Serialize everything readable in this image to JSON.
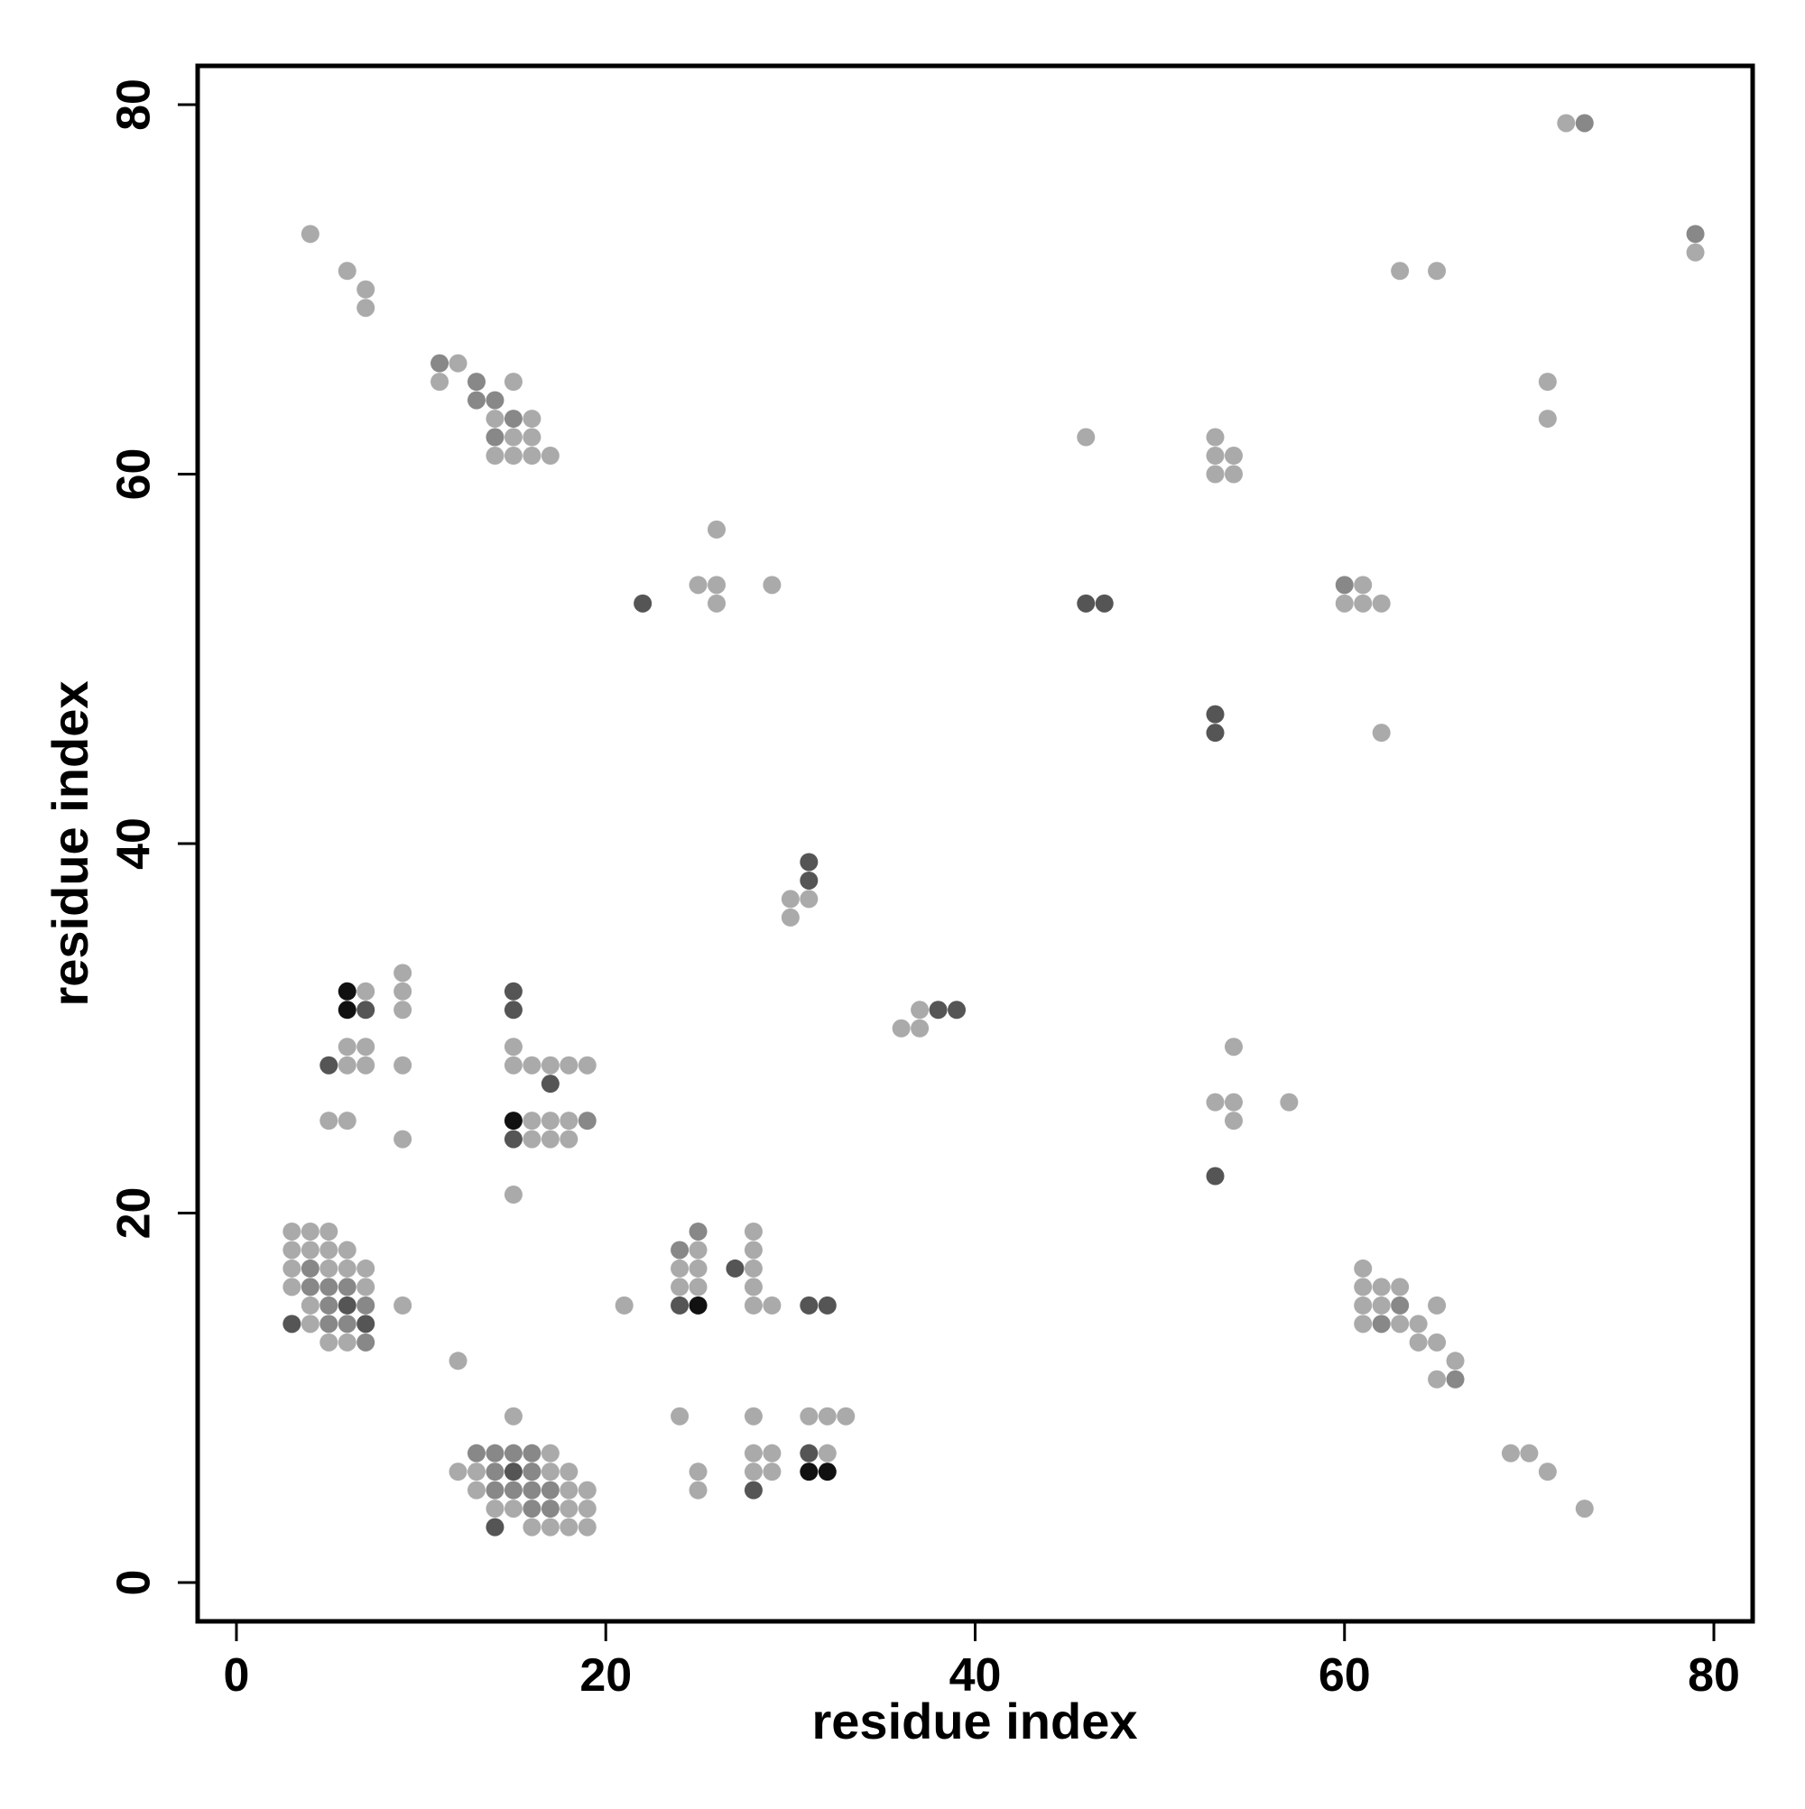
{
  "chart_data": {
    "type": "scatter",
    "xlabel": "residue index",
    "ylabel": "residue index",
    "xlim": [
      -2.1,
      82.1
    ],
    "ylim": [
      -2.1,
      82.1
    ],
    "xticks": [
      0,
      20,
      40,
      60,
      80
    ],
    "yticks": [
      0,
      20,
      40,
      60,
      80
    ],
    "series": [
      {
        "color": "#aaaaaa",
        "x": [
          4,
          6,
          7,
          7,
          12,
          11,
          15,
          14,
          16,
          15,
          16,
          14,
          15,
          16,
          17,
          25,
          26,
          26,
          26,
          29,
          46,
          53,
          53,
          54,
          53,
          54,
          61,
          60,
          61,
          62,
          62,
          63,
          65,
          71,
          71,
          72,
          79,
          30,
          31,
          30,
          36,
          37,
          37,
          54,
          53,
          54,
          54,
          57,
          7,
          9,
          9,
          9,
          6,
          7,
          6,
          7,
          9,
          5,
          6,
          9,
          15,
          15,
          16,
          17,
          18,
          19,
          16,
          17,
          18,
          16,
          17,
          18,
          15,
          3,
          4,
          5,
          3,
          4,
          5,
          6,
          3,
          5,
          6,
          7,
          3,
          7,
          4,
          9,
          4,
          5,
          6,
          12,
          28,
          25,
          28,
          24,
          25,
          28,
          24,
          25,
          28,
          28,
          29,
          21,
          61,
          61,
          62,
          63,
          61,
          62,
          65,
          61,
          63,
          64,
          64,
          65,
          66,
          65,
          69,
          70,
          71,
          73,
          15,
          17,
          12,
          13,
          16,
          17,
          18,
          13,
          18,
          19,
          14,
          15,
          18,
          19,
          16,
          17,
          18,
          19,
          24,
          28,
          31,
          32,
          33,
          28,
          29,
          32,
          25,
          28,
          29,
          25
        ],
        "values": [
          73,
          71,
          70,
          69,
          66,
          65,
          65,
          63,
          63,
          62,
          62,
          61,
          61,
          61,
          61,
          54,
          54,
          53,
          57,
          54,
          62,
          62,
          61,
          61,
          60,
          60,
          54,
          53,
          53,
          53,
          46,
          71,
          71,
          65,
          63,
          79,
          72,
          37,
          37,
          36,
          30,
          31,
          30,
          29,
          26,
          26,
          25,
          26,
          32,
          33,
          32,
          31,
          29,
          29,
          28,
          28,
          28,
          25,
          25,
          24,
          29,
          28,
          28,
          28,
          28,
          28,
          25,
          25,
          25,
          24,
          24,
          24,
          21,
          19,
          19,
          19,
          18,
          18,
          18,
          18,
          17,
          17,
          17,
          17,
          16,
          16,
          15,
          15,
          14,
          13,
          13,
          12,
          19,
          18,
          18,
          17,
          17,
          17,
          16,
          16,
          16,
          15,
          15,
          15,
          17,
          16,
          16,
          16,
          15,
          15,
          15,
          14,
          14,
          14,
          13,
          13,
          12,
          11,
          7,
          7,
          6,
          4,
          9,
          7,
          6,
          6,
          6,
          6,
          6,
          5,
          5,
          5,
          4,
          4,
          4,
          4,
          3,
          3,
          3,
          3,
          9,
          9,
          9,
          9,
          9,
          7,
          7,
          7,
          6,
          6,
          6,
          5
        ]
      },
      {
        "color": "#888888",
        "x": [
          11,
          13,
          13,
          14,
          15,
          14,
          60,
          73,
          79,
          19,
          4,
          4,
          5,
          6,
          5,
          7,
          5,
          6,
          7,
          25,
          24,
          63,
          62,
          66,
          13,
          14,
          15,
          16,
          14,
          16,
          14,
          15,
          16,
          17,
          16,
          17
        ],
        "values": [
          66,
          65,
          64,
          64,
          63,
          62,
          54,
          79,
          73,
          25,
          17,
          16,
          16,
          16,
          15,
          15,
          14,
          14,
          13,
          19,
          18,
          15,
          14,
          11,
          7,
          7,
          7,
          7,
          6,
          6,
          5,
          5,
          5,
          5,
          4,
          4
        ]
      },
      {
        "color": "#555555",
        "x": [
          22,
          46,
          47,
          53,
          53,
          31,
          31,
          38,
          39,
          53,
          7,
          5,
          15,
          15,
          17,
          15,
          6,
          3,
          7,
          27,
          24,
          31,
          32,
          15,
          14,
          31,
          28
        ],
        "values": [
          53,
          53,
          53,
          47,
          46,
          39,
          38,
          31,
          31,
          22,
          31,
          28,
          32,
          31,
          27,
          24,
          15,
          14,
          14,
          17,
          15,
          15,
          15,
          6,
          3,
          7,
          5
        ]
      },
      {
        "color": "#111111",
        "x": [
          6,
          6,
          15,
          25,
          31,
          32
        ],
        "values": [
          32,
          31,
          25,
          15,
          6,
          6
        ]
      }
    ]
  }
}
